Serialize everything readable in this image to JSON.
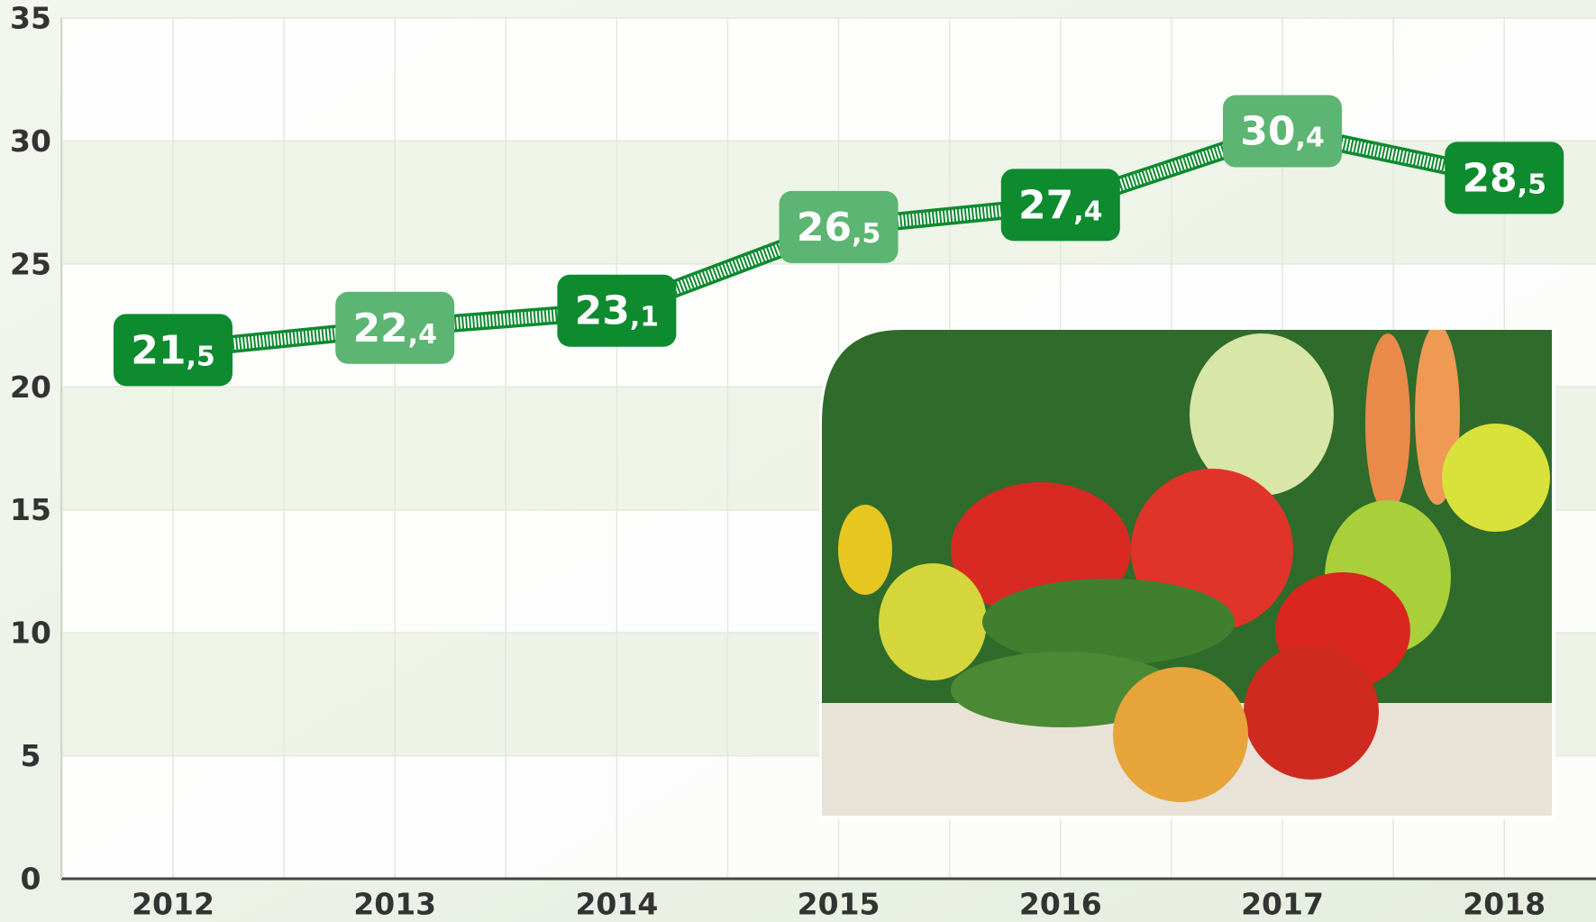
{
  "chart_data": {
    "type": "line",
    "categories": [
      "2012",
      "2013",
      "2014",
      "2015",
      "2016",
      "2017",
      "2018"
    ],
    "values": [
      21.5,
      22.4,
      23.1,
      26.5,
      27.4,
      30.4,
      28.5
    ],
    "value_labels": [
      "21,5",
      "22,4",
      "23,1",
      "26,5",
      "27,4",
      "30,4",
      "28,5"
    ],
    "color": "#0e8a2f",
    "label_colors": [
      "#0e8a2f",
      "#5cb572"
    ],
    "ylim": [
      0,
      35
    ],
    "yticks": [
      0,
      5,
      10,
      15,
      20,
      25,
      30,
      35
    ],
    "grid": true
  }
}
